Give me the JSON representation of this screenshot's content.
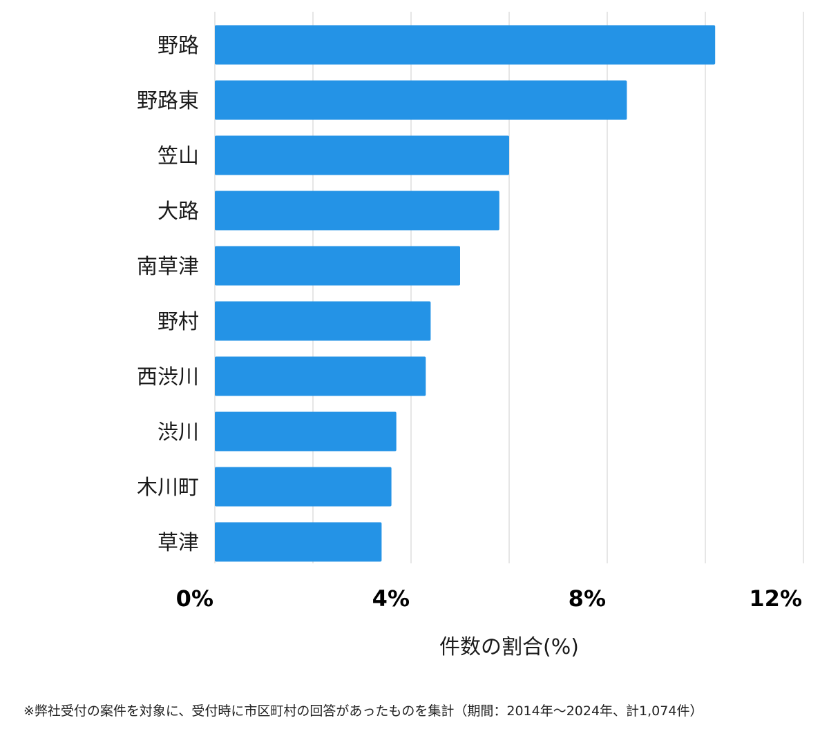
{
  "chart_data": {
    "type": "bar",
    "orientation": "horizontal",
    "categories": [
      "野路",
      "野路東",
      "笠山",
      "大路",
      "南草津",
      "野村",
      "西渋川",
      "渋川",
      "木川町",
      "草津"
    ],
    "values": [
      10.2,
      8.4,
      6.0,
      5.8,
      5.0,
      4.4,
      4.3,
      3.7,
      3.6,
      3.4
    ],
    "xlim": [
      0,
      12
    ],
    "major_ticks": [
      0,
      4,
      8,
      12
    ],
    "tick_labels": [
      "0%",
      "4%",
      "8%",
      "12%"
    ],
    "minor_gridlines": [
      2,
      6,
      10
    ],
    "xlabel": "件数の割合(%)",
    "ylabel": "",
    "bar_color": "#2493e6",
    "grid": true
  },
  "footnote": "※弊社受付の案件を対象に、受付時に市区町村の回答があったものを集計（期間：2014年～2024年、計1,074件）"
}
